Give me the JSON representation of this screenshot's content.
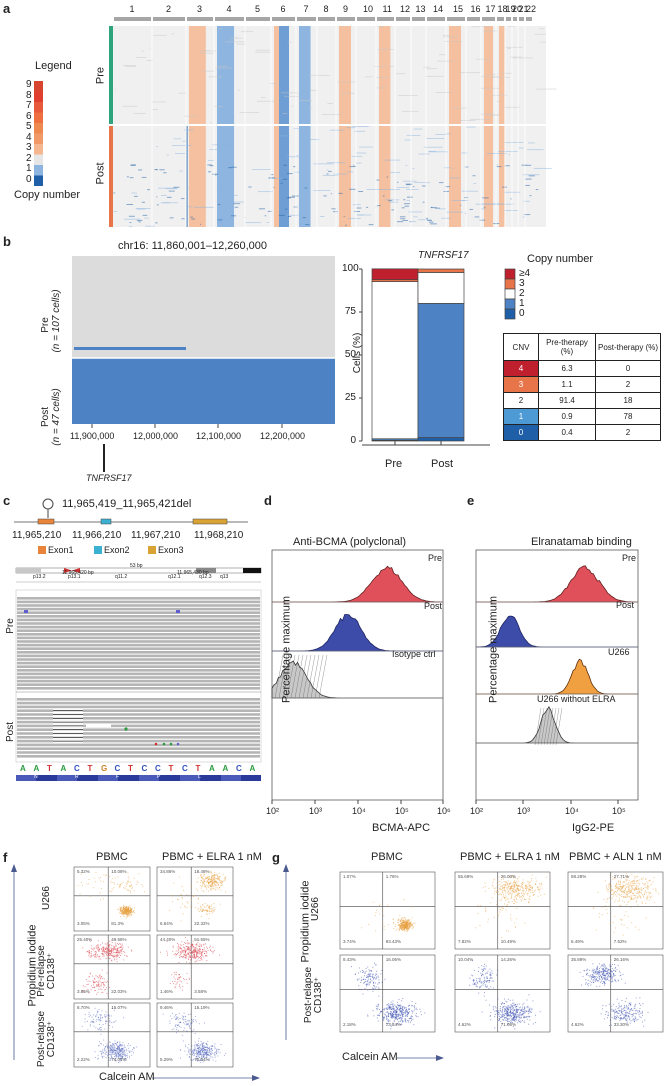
{
  "panel_labels": {
    "a": "a",
    "b": "b",
    "c": "c",
    "d": "d",
    "e": "e",
    "f": "f",
    "g": "g"
  },
  "a": {
    "chromosomes": [
      "1",
      "2",
      "3",
      "4",
      "5",
      "6",
      "7",
      "8",
      "9",
      "10",
      "11",
      "12",
      "13",
      "14",
      "15",
      "16",
      "17",
      "18",
      "19",
      "20",
      "21",
      "22"
    ],
    "legend_title": "Legend",
    "legend_values": [
      "9",
      "8",
      "7",
      "6",
      "5",
      "4",
      "3",
      "2",
      "1",
      "0"
    ],
    "legend_caption": "Copy number",
    "groups": [
      "Pre",
      "Post"
    ],
    "colors": {
      "loss2": "#1f5fa8",
      "loss1": "#8db5df",
      "neutral": "#e6e6e6",
      "gain3": "#f4b790",
      "gain4": "#ee8a4f",
      "gain5": "#d8452e",
      "pre_bar": "#2fa37c",
      "post_bar": "#e8744a"
    }
  },
  "b": {
    "region_title": "chr16: 11,860,001–12,260,000",
    "pre_label": "Pre",
    "pre_n": "(n = 107 cells)",
    "post_label": "Post",
    "post_n": "(n = 47 cells)",
    "x_ticks": [
      "11,900,000",
      "12,000,000",
      "12,100,000",
      "12,200,000"
    ],
    "gene": "TNFRSF17",
    "colors": {
      "pre_bg": "#dcdcdc",
      "post_bg": "#4d82c4",
      "pre_line": "#4d82c4"
    }
  },
  "chart_data": {
    "type": "bar",
    "title": "TNFRSF17",
    "ylabel": "Cells (%)",
    "xlabel": "",
    "ylim": [
      0,
      100
    ],
    "y_ticks": [
      "0",
      "25",
      "50",
      "75",
      "100"
    ],
    "categories": [
      "Pre",
      "Post"
    ],
    "legend_title": "Copy number",
    "series": [
      {
        "name": "0",
        "color": "#1f5fa8",
        "values": [
          0.4,
          2
        ]
      },
      {
        "name": "1",
        "color": "#4d82c4",
        "values": [
          0.9,
          78
        ]
      },
      {
        "name": "2",
        "color": "#ffffff",
        "values": [
          91.4,
          18
        ]
      },
      {
        "name": "3",
        "color": "#e8744a",
        "values": [
          1.1,
          2
        ]
      },
      {
        "name": "≥4",
        "color": "#c0202e",
        "values": [
          6.3,
          0
        ]
      }
    ]
  },
  "cnv_table": {
    "headers": [
      "CNV",
      "Pre-therapy (%)",
      "Post-therapy (%)"
    ],
    "rows": [
      {
        "cnv": "4",
        "pre": "6.3",
        "post": "0",
        "color": "#c0202e",
        "text": "#ffffff"
      },
      {
        "cnv": "3",
        "pre": "1.1",
        "post": "2",
        "color": "#e8744a",
        "text": "#ffffff"
      },
      {
        "cnv": "2",
        "pre": "91.4",
        "post": "18",
        "color": "#ffffff",
        "text": "#222222"
      },
      {
        "cnv": "1",
        "pre": "0.9",
        "post": "78",
        "color": "#4d9ad4",
        "text": "#ffffff"
      },
      {
        "cnv": "0",
        "pre": "0.4",
        "post": "2",
        "color": "#1f5fa8",
        "text": "#ffffff"
      }
    ]
  },
  "c": {
    "deletion": "11,965,419_11,965,421del",
    "coords": [
      "11,965,210",
      "11,966,210",
      "11,967,210",
      "11,968,210"
    ],
    "exons": [
      "Exon1",
      "Exon2",
      "Exon3"
    ],
    "exon_colors": [
      "#e8853a",
      "#3bb0d0",
      "#d9a234"
    ],
    "bands": [
      "p13.2",
      "p13.1",
      "q11.2",
      "q12.1",
      "q12.3",
      "q13"
    ],
    "bp_label": "53 bp",
    "pos_labels": [
      "11,965,420 bp",
      "11,965,430 bp"
    ],
    "pre_label": "Pre",
    "post_label": "Post",
    "sequence": [
      "A",
      "A",
      "T",
      "A",
      "C",
      "T",
      "G",
      "C",
      "T",
      "C",
      "C",
      "T",
      "C",
      "T",
      "A",
      "A",
      "C",
      "A"
    ],
    "amino_acids": [
      "N",
      "R",
      "F",
      "P",
      "L"
    ]
  },
  "d": {
    "title": "Anti-BCMA (polyclonal)",
    "rows": [
      "Pre",
      "Post",
      "Isotype ctrl"
    ],
    "ylabel": "Percentage maximum",
    "xlabel": "BCMA-APC",
    "x_ticks": [
      "10²",
      "10³",
      "10⁴",
      "10⁵",
      "10⁶"
    ],
    "colors": [
      "#e0505a",
      "#3c4ca8",
      "#bbbbbb"
    ]
  },
  "e": {
    "title": "Elranatamab binding",
    "rows": [
      "Pre",
      "Post",
      "U266",
      "U266 without ELRA"
    ],
    "ylabel": "Percentage maximum",
    "xlabel": "IgG2-PE",
    "x_ticks": [
      "10²",
      "10³",
      "10⁴",
      "10⁵"
    ],
    "colors": [
      "#e0505a",
      "#3c4ca8",
      "#f0a040",
      "#bbbbbb"
    ]
  },
  "f": {
    "columns": [
      "PBMC",
      "PBMC + ELRA 1 nM"
    ],
    "rows": [
      "U266",
      "Pre-relapse CD138⁺",
      "Post-relapse CD138⁺"
    ],
    "ylabel": "Propidium iodide",
    "xlabel": "Calcein AM",
    "quadrants": [
      [
        [
          "5.32%",
          "10.08%",
          "3.05%",
          "81.3%"
        ],
        [
          "34.86%",
          "18.48%",
          "6.64%",
          "22.32%"
        ]
      ],
      [
        [
          "25.40%",
          "49.58%",
          "3.86%",
          "22.03%"
        ],
        [
          "44.40%",
          "51.55%",
          "1.46%",
          "3.58%"
        ]
      ],
      [
        [
          "8.70%",
          "15.07%",
          "2.22%",
          "74.01%"
        ],
        [
          "9.46%",
          "15.19%",
          "5.29%",
          "70.04%"
        ]
      ]
    ],
    "colors": [
      "#e8a040",
      "#d8404a",
      "#5a6cc0"
    ]
  },
  "g": {
    "columns": [
      "PBMC",
      "PBMC + ELRA 1 nM",
      "PBMC + ALN 1 nM"
    ],
    "rows": [
      "U266",
      "Post-relapse CD138⁺"
    ],
    "ylabel": "Propidium iodide",
    "xlabel": "Calcein AM",
    "quadrants": [
      [
        [
          "1.07%",
          "1.76%",
          "3.74%",
          "93.43%"
        ],
        [
          "55.69%",
          "26.00%",
          "7.82%",
          "10.49%"
        ],
        [
          "58.28%",
          "27.71%",
          "6.49%",
          "7.52%"
        ]
      ],
      [
        [
          "8.43%",
          "16.06%",
          "2.18%",
          "73.34%"
        ],
        [
          "10.04%",
          "14.26%",
          "4.62%",
          "71.08%"
        ],
        [
          "35.89%",
          "26.16%",
          "4.62%",
          "33.30%"
        ]
      ]
    ],
    "colors": [
      "#e8a040",
      "#3c50b0"
    ]
  }
}
